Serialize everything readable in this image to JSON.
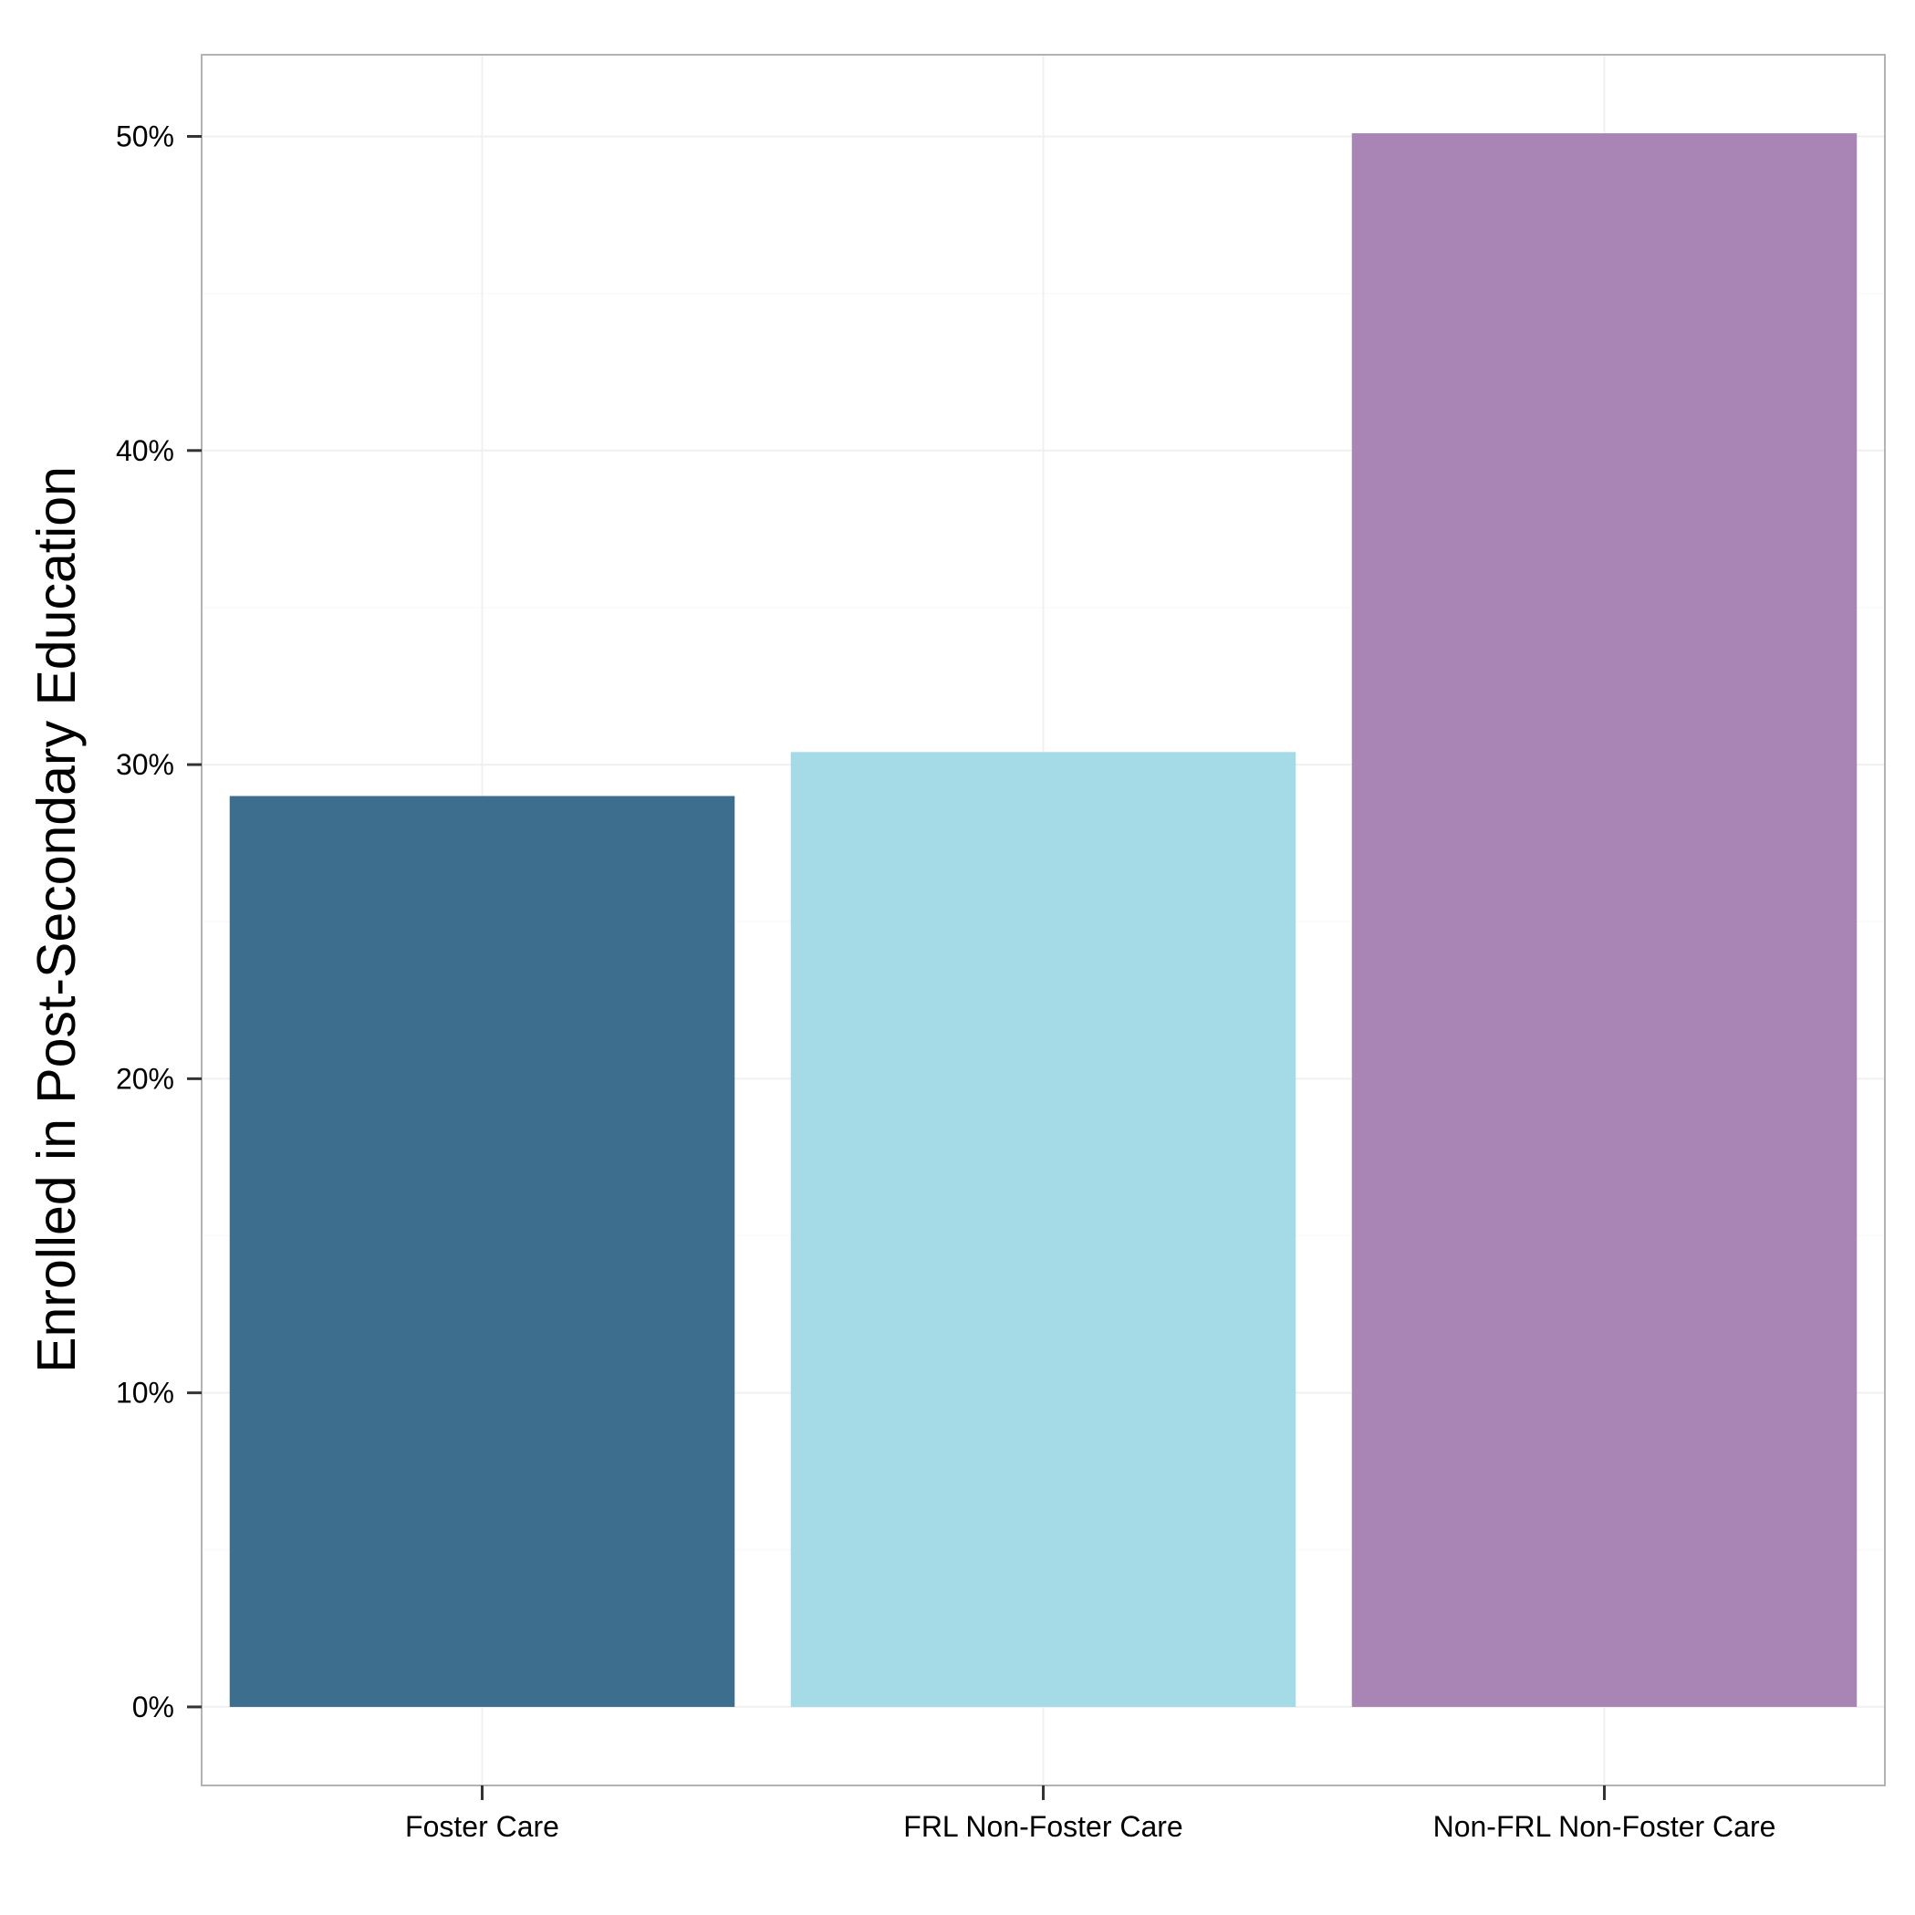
{
  "chart_data": {
    "type": "bar",
    "title": "",
    "xlabel": "",
    "ylabel": "Enrolled in Post-Secondary Education",
    "categories": [
      "Foster Care",
      "FRL Non-Foster Care",
      "Non-FRL Non-Foster Care"
    ],
    "values": [
      29.0,
      30.4,
      50.1
    ],
    "colors": [
      "#3e6e8e",
      "#a4dbe6",
      "#a885b4"
    ],
    "ylim": [
      -2.5,
      52.6
    ],
    "yticks": [
      0,
      10,
      20,
      30,
      40,
      50
    ],
    "ytick_labels": [
      "0%",
      "10%",
      "20%",
      "30%",
      "40%",
      "50%"
    ],
    "grid": true,
    "legend": "none"
  }
}
